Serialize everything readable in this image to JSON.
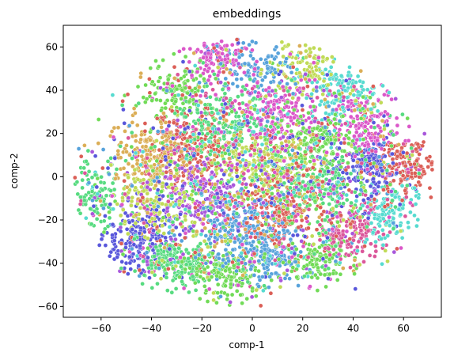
{
  "chart_data": {
    "type": "scatter",
    "title": "embeddings",
    "xlabel": "comp-1",
    "ylabel": "comp-2",
    "xlim": [
      -75,
      75
    ],
    "ylim": [
      -65,
      70
    ],
    "xticks": [
      -60,
      -40,
      -20,
      0,
      20,
      40,
      60
    ],
    "yticks": [
      -60,
      -40,
      -20,
      0,
      20,
      40,
      60
    ],
    "xtick_labels": [
      "−60",
      "−40",
      "−20",
      "0",
      "20",
      "40",
      "60"
    ],
    "ytick_labels": [
      "−60",
      "−40",
      "−20",
      "0",
      "20",
      "40",
      "60"
    ],
    "grid": false,
    "legend": "none",
    "palette": [
      "#db5f57",
      "#dbae57",
      "#c0db57",
      "#71db57",
      "#57db80",
      "#57dbd0",
      "#57a2db",
      "#5957db",
      "#a857db",
      "#db57c9",
      "#db579a"
    ],
    "clusters": [
      {
        "cx": -62,
        "cy": -8,
        "sx": 5,
        "sy": 8,
        "n": 120,
        "color": 4
      },
      {
        "cx": -45,
        "cy": -30,
        "sx": 7,
        "sy": 8,
        "n": 260,
        "color": 7
      },
      {
        "cx": -30,
        "cy": -40,
        "sx": 8,
        "sy": 6,
        "n": 220,
        "color": 4
      },
      {
        "cx": -10,
        "cy": -45,
        "sx": 7,
        "sy": 6,
        "n": 180,
        "color": 3
      },
      {
        "cx": 8,
        "cy": -38,
        "sx": 6,
        "sy": 6,
        "n": 150,
        "color": 6
      },
      {
        "cx": 25,
        "cy": -38,
        "sx": 6,
        "sy": 6,
        "n": 150,
        "color": 3
      },
      {
        "cx": 40,
        "cy": -25,
        "sx": 7,
        "sy": 8,
        "n": 200,
        "color": 10
      },
      {
        "cx": 55,
        "cy": -15,
        "sx": 6,
        "sy": 7,
        "n": 160,
        "color": 5
      },
      {
        "cx": 60,
        "cy": 5,
        "sx": 6,
        "sy": 6,
        "n": 180,
        "color": 0
      },
      {
        "cx": 45,
        "cy": 5,
        "sx": 6,
        "sy": 7,
        "n": 200,
        "color": 7
      },
      {
        "cx": 45,
        "cy": 25,
        "sx": 7,
        "sy": 7,
        "n": 180,
        "color": 9
      },
      {
        "cx": 35,
        "cy": 40,
        "sx": 8,
        "sy": 6,
        "n": 150,
        "color": 5
      },
      {
        "cx": 20,
        "cy": 50,
        "sx": 7,
        "sy": 6,
        "n": 120,
        "color": 2
      },
      {
        "cx": 0,
        "cy": 50,
        "sx": 8,
        "sy": 6,
        "n": 140,
        "color": 6
      },
      {
        "cx": -15,
        "cy": 55,
        "sx": 6,
        "sy": 5,
        "n": 120,
        "color": 9
      },
      {
        "cx": -30,
        "cy": 40,
        "sx": 8,
        "sy": 7,
        "n": 160,
        "color": 3
      },
      {
        "cx": -25,
        "cy": 15,
        "sx": 8,
        "sy": 8,
        "n": 260,
        "color": 0
      },
      {
        "cx": -40,
        "cy": 10,
        "sx": 8,
        "sy": 8,
        "n": 220,
        "color": 1
      },
      {
        "cx": -10,
        "cy": 25,
        "sx": 9,
        "sy": 8,
        "n": 220,
        "color": 4
      },
      {
        "cx": 10,
        "cy": 30,
        "sx": 8,
        "sy": 7,
        "n": 200,
        "color": 9
      },
      {
        "cx": 25,
        "cy": 15,
        "sx": 8,
        "sy": 7,
        "n": 200,
        "color": 3
      },
      {
        "cx": 5,
        "cy": 5,
        "sx": 9,
        "sy": 6,
        "n": 220,
        "color": 2
      },
      {
        "cx": -20,
        "cy": -10,
        "sx": 9,
        "sy": 8,
        "n": 240,
        "color": 8
      },
      {
        "cx": 10,
        "cy": -15,
        "sx": 9,
        "sy": 8,
        "n": 240,
        "color": 0
      },
      {
        "cx": 25,
        "cy": -5,
        "sx": 8,
        "sy": 6,
        "n": 180,
        "color": 4
      },
      {
        "cx": -5,
        "cy": -25,
        "sx": 9,
        "sy": 7,
        "n": 200,
        "color": 6
      },
      {
        "cx": -40,
        "cy": -10,
        "sx": 7,
        "sy": 7,
        "n": 160,
        "color": 2
      },
      {
        "cx": 0,
        "cy": 0,
        "sx": 30,
        "sy": 24,
        "n": 900,
        "color": -1
      }
    ]
  }
}
